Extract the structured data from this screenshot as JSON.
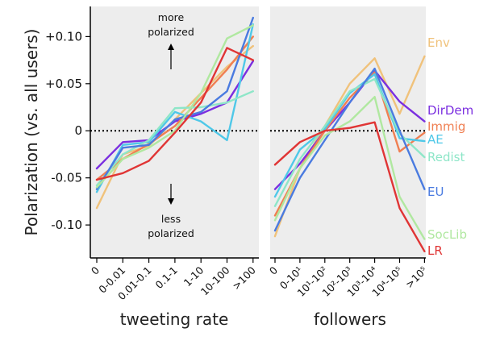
{
  "chart_data": [
    {
      "type": "line",
      "panel": "left",
      "xlabel": "tweeting rate",
      "ylabel": "Polarization (vs. all users)",
      "categories": [
        "0",
        "0-0.01",
        "0.01-0.1",
        "0.1-1",
        "1-10",
        "10-100",
        ">100"
      ],
      "yticks": [
        "+0.10",
        "+0.05",
        "0",
        "-0.05",
        "-0.10"
      ],
      "ylim": [
        -0.135,
        0.132
      ],
      "zero_line": true,
      "annotations": {
        "more": "more",
        "polarized_up": "polarized",
        "less": "less",
        "polarized_down": "polarized"
      },
      "series": [
        {
          "name": "Env",
          "color": "#f0c27b",
          "values": [
            -0.082,
            -0.025,
            -0.016,
            0.012,
            0.04,
            0.068,
            0.09
          ]
        },
        {
          "name": "DirDem",
          "color": "#7b2fe0",
          "values": [
            -0.04,
            -0.012,
            -0.01,
            0.01,
            0.018,
            0.03,
            0.074
          ]
        },
        {
          "name": "Immig",
          "color": "#f07f52",
          "values": [
            -0.052,
            -0.03,
            -0.014,
            0.005,
            0.035,
            0.065,
            0.1
          ]
        },
        {
          "name": "AE",
          "color": "#4fc8e8",
          "values": [
            -0.065,
            -0.015,
            -0.012,
            0.02,
            0.01,
            -0.01,
            0.113
          ]
        },
        {
          "name": "Redist",
          "color": "#8ee6c8",
          "values": [
            -0.058,
            -0.025,
            -0.01,
            0.024,
            0.025,
            0.03,
            0.042
          ]
        },
        {
          "name": "EU",
          "color": "#4a7be0",
          "values": [
            -0.062,
            -0.018,
            -0.015,
            0.012,
            0.02,
            0.042,
            0.12
          ]
        },
        {
          "name": "SocLib",
          "color": "#b0e8a0",
          "values": [
            -0.06,
            -0.03,
            -0.018,
            0.0,
            0.04,
            0.098,
            0.112
          ]
        },
        {
          "name": "LR",
          "color": "#e03535",
          "values": [
            -0.052,
            -0.045,
            -0.032,
            -0.002,
            0.03,
            0.088,
            0.075
          ]
        }
      ]
    },
    {
      "type": "line",
      "panel": "right",
      "xlabel": "followers",
      "categories": [
        "0",
        "0-10¹",
        "10¹-10²",
        "10²-10³",
        "10³-10⁴",
        "10⁴-10⁵",
        ">10⁵"
      ],
      "ylim": [
        -0.135,
        0.132
      ],
      "zero_line": true,
      "series": [
        {
          "name": "Env",
          "color": "#f0c27b",
          "values": [
            -0.112,
            -0.04,
            0.005,
            0.05,
            0.077,
            0.018,
            0.079
          ]
        },
        {
          "name": "DirDem",
          "color": "#7b2fe0",
          "values": [
            -0.062,
            -0.035,
            0.0,
            0.03,
            0.064,
            0.031,
            0.01
          ]
        },
        {
          "name": "Immig",
          "color": "#f07f52",
          "values": [
            -0.09,
            -0.04,
            0.0,
            0.035,
            0.062,
            -0.022,
            -0.002
          ]
        },
        {
          "name": "AE",
          "color": "#4fc8e8",
          "values": [
            -0.07,
            -0.02,
            0.002,
            0.04,
            0.06,
            -0.008,
            -0.011
          ]
        },
        {
          "name": "Redist",
          "color": "#8ee6c8",
          "values": [
            -0.08,
            -0.03,
            0.005,
            0.042,
            0.055,
            -0.003,
            -0.028
          ]
        },
        {
          "name": "EU",
          "color": "#4a7be0",
          "values": [
            -0.106,
            -0.05,
            -0.01,
            0.03,
            0.066,
            0.0,
            -0.062
          ]
        },
        {
          "name": "SocLib",
          "color": "#b0e8a0",
          "values": [
            -0.095,
            -0.04,
            -0.005,
            0.01,
            0.036,
            -0.07,
            -0.115
          ]
        },
        {
          "name": "LR",
          "color": "#e03535",
          "values": [
            -0.036,
            -0.012,
            0.0,
            0.003,
            0.009,
            -0.082,
            -0.128
          ]
        }
      ],
      "end_labels": [
        "Env",
        "DirDem",
        "Immig",
        "AE",
        "Redist",
        "EU",
        "SocLib",
        "LR"
      ]
    }
  ]
}
